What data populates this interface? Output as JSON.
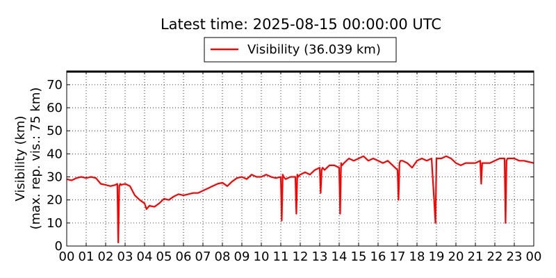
{
  "chart_data": {
    "type": "line",
    "title": "Latest time: 2025-08-15 00:00:00 UTC",
    "ylabel_line1": "Visibility (km)",
    "ylabel_line2": "(max. rep. vis.: 75 km)",
    "xlabel": "",
    "xlim": [
      0,
      24
    ],
    "ylim": [
      0,
      76
    ],
    "grid": true,
    "legend_position": "top-center",
    "x_ticks": [
      0,
      1,
      2,
      3,
      4,
      5,
      6,
      7,
      8,
      9,
      10,
      11,
      12,
      13,
      14,
      15,
      16,
      17,
      18,
      19,
      20,
      21,
      22,
      23,
      24
    ],
    "x_tick_labels": [
      "00",
      "01",
      "02",
      "03",
      "04",
      "05",
      "06",
      "07",
      "08",
      "09",
      "10",
      "11",
      "12",
      "13",
      "14",
      "15",
      "16",
      "17",
      "18",
      "19",
      "20",
      "21",
      "22",
      "23",
      "00"
    ],
    "y_ticks": [
      0,
      10,
      20,
      30,
      40,
      50,
      60,
      70
    ],
    "y_tick_labels": [
      "0",
      "10",
      "20",
      "30",
      "40",
      "50",
      "60",
      "70"
    ],
    "series": [
      {
        "name": "Visibility (36.039 km)",
        "color": "#ff0000",
        "x": [
          0,
          0.25,
          0.5,
          0.75,
          1,
          1.25,
          1.5,
          1.75,
          2,
          2.25,
          2.5,
          2.6,
          2.65,
          2.7,
          2.75,
          2.8,
          3,
          3.25,
          3.5,
          3.75,
          4,
          4.1,
          4.25,
          4.5,
          4.75,
          5,
          5.25,
          5.5,
          5.75,
          6,
          6.25,
          6.5,
          6.75,
          7,
          7.25,
          7.5,
          7.75,
          8,
          8.25,
          8.5,
          8.75,
          9,
          9.25,
          9.5,
          9.75,
          10,
          10.25,
          10.5,
          10.75,
          11,
          11.05,
          11.1,
          11.15,
          11.25,
          11.5,
          11.75,
          11.8,
          11.85,
          11.9,
          12,
          12.25,
          12.5,
          12.75,
          13,
          13.05,
          13.1,
          13.15,
          13.25,
          13.5,
          13.75,
          14,
          14.05,
          14.1,
          14.15,
          14.25,
          14.5,
          14.75,
          15,
          15.25,
          15.5,
          15.75,
          16,
          16.25,
          16.5,
          16.75,
          17,
          17.05,
          17.1,
          17.15,
          17.25,
          17.5,
          17.75,
          18,
          18.25,
          18.5,
          18.75,
          18.95,
          19,
          19.05,
          19.25,
          19.5,
          19.75,
          20,
          20.25,
          20.5,
          20.75,
          21,
          21.25,
          21.3,
          21.35,
          21.5,
          21.75,
          22,
          22.25,
          22.5,
          22.55,
          22.6,
          22.65,
          22.75,
          23,
          23.25,
          23.5,
          23.75,
          24
        ],
        "values": [
          29,
          28.5,
          29.5,
          30,
          29.5,
          30,
          29.5,
          27,
          26.5,
          26,
          26.5,
          27,
          1.5,
          26,
          27,
          26.5,
          27,
          26,
          22,
          20,
          18.5,
          16,
          17.5,
          17,
          18.5,
          20.5,
          20,
          21.5,
          22.5,
          22,
          22.5,
          23,
          23,
          24,
          25,
          26,
          27,
          27.5,
          26,
          28,
          29.5,
          30,
          29,
          31,
          30,
          30,
          31,
          30,
          29.5,
          30,
          11,
          31,
          30,
          29,
          30,
          30,
          14,
          31,
          30,
          31,
          32,
          31,
          33,
          34,
          23,
          33,
          34,
          33,
          35,
          35,
          34,
          14,
          36,
          35,
          36,
          38,
          37,
          38,
          39,
          37,
          38,
          37,
          36,
          37,
          35,
          33,
          20,
          36,
          37,
          37,
          36,
          34,
          37,
          38,
          37,
          38,
          10,
          38,
          38,
          38,
          39,
          38,
          36,
          35,
          36,
          36,
          36,
          37,
          27,
          36,
          36,
          36,
          37,
          38,
          38,
          10,
          37,
          38,
          38,
          38,
          37,
          37,
          36.5,
          36
        ]
      }
    ]
  }
}
